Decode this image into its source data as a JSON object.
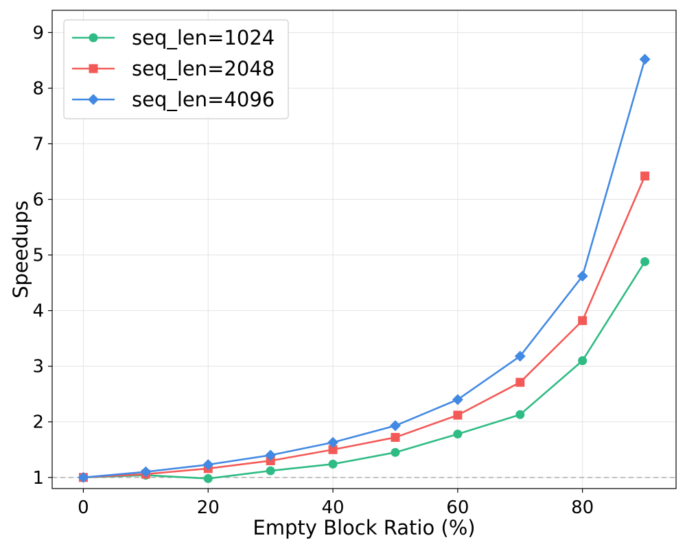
{
  "chart_data": {
    "type": "line",
    "title": "",
    "xlabel": "Empty Block Ratio (%)",
    "ylabel": "Speedups",
    "x": [
      0,
      10,
      20,
      30,
      40,
      50,
      60,
      70,
      80,
      90
    ],
    "xlim": [
      -5,
      95
    ],
    "ylim": [
      0.8,
      9.4
    ],
    "xticks": [
      0,
      20,
      40,
      60,
      80
    ],
    "yticks": [
      1,
      2,
      3,
      4,
      5,
      6,
      7,
      8,
      9
    ],
    "grid": true,
    "legend_position": "top-left",
    "reference_line": {
      "y": 1,
      "style": "dashed",
      "color": "#b3b3b3"
    },
    "series": [
      {
        "name": "seq_len=1024",
        "marker": "circle",
        "color": "#2fbb84",
        "values": [
          1.0,
          1.04,
          0.98,
          1.12,
          1.24,
          1.45,
          1.78,
          2.13,
          3.1,
          4.88
        ]
      },
      {
        "name": "seq_len=2048",
        "marker": "square",
        "color": "#f35a57",
        "values": [
          1.0,
          1.06,
          1.16,
          1.3,
          1.5,
          1.72,
          2.12,
          2.71,
          3.82,
          6.42
        ]
      },
      {
        "name": "seq_len=4096",
        "marker": "diamond",
        "color": "#4289e3",
        "values": [
          1.0,
          1.1,
          1.23,
          1.4,
          1.63,
          1.93,
          2.4,
          3.18,
          4.62,
          8.52
        ]
      }
    ]
  }
}
